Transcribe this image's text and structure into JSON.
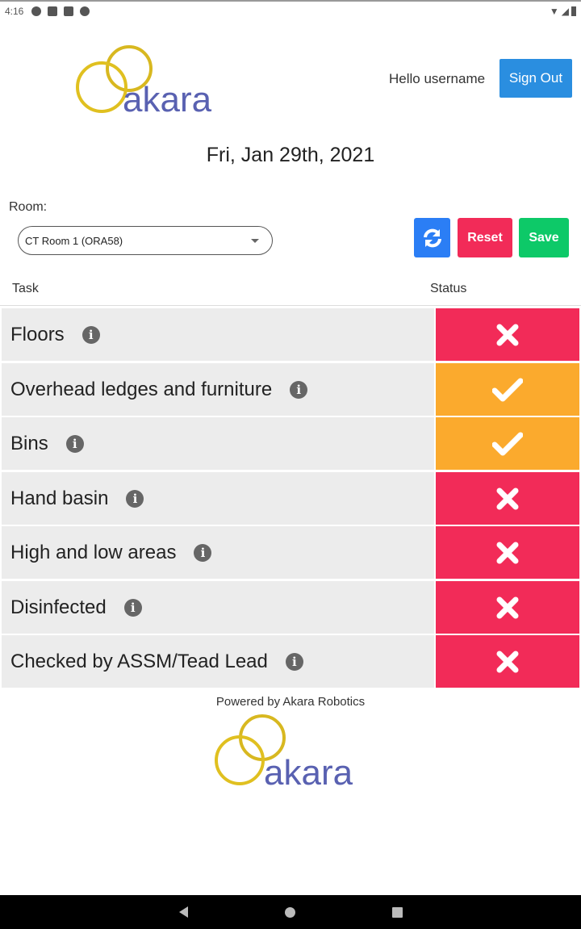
{
  "statusbar": {
    "time": "4:16"
  },
  "header": {
    "logo_text": "akara",
    "greeting": "Hello username",
    "sign_out_label": "Sign Out"
  },
  "date": "Fri, Jan 29th, 2021",
  "room": {
    "label": "Room:",
    "selected": "CT Room 1 (ORA58)"
  },
  "toolbar": {
    "refresh_icon": "refresh-icon",
    "reset_label": "Reset",
    "save_label": "Save"
  },
  "table": {
    "headers": {
      "task": "Task",
      "status": "Status"
    },
    "rows": [
      {
        "task": "Floors",
        "status": "incomplete"
      },
      {
        "task": "Overhead ledges and furniture",
        "status": "complete"
      },
      {
        "task": "Bins",
        "status": "complete"
      },
      {
        "task": "Hand basin",
        "status": "incomplete"
      },
      {
        "task": "High and low areas",
        "status": "incomplete"
      },
      {
        "task": "Disinfected",
        "status": "incomplete"
      },
      {
        "task": "Checked by ASSM/Tead Lead",
        "status": "incomplete"
      }
    ]
  },
  "footer": {
    "powered_by": "Powered by Akara Robotics",
    "logo_text": "akara"
  },
  "colors": {
    "incomplete": "#f22b58",
    "complete": "#fbaa2d",
    "sign_out": "#2a8ee0",
    "refresh": "#2b7ef5",
    "reset": "#f22b58",
    "save": "#0dc968",
    "logo_text": "#5961b1",
    "logo_ring": "#d8b820"
  }
}
